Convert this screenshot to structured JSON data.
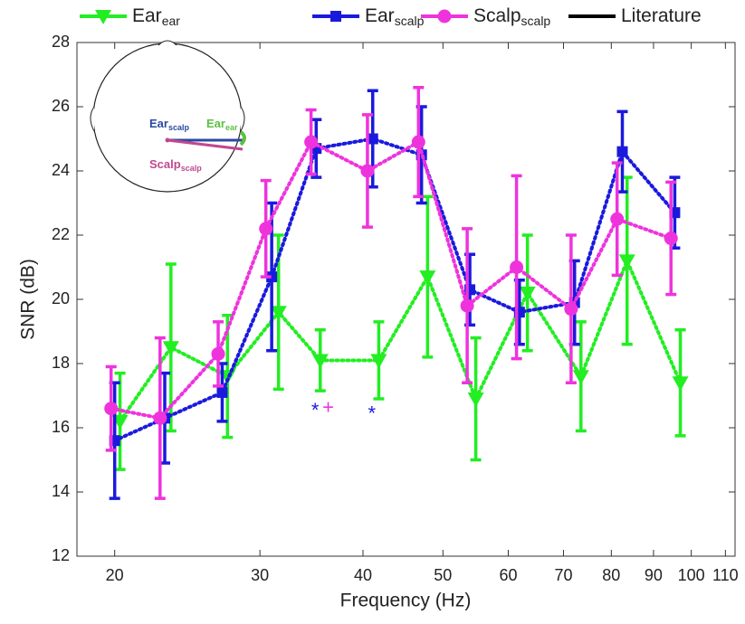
{
  "chart_data": {
    "type": "line",
    "xlabel": "Frequency (Hz)",
    "ylabel": "SNR (dB)",
    "xscale": "log",
    "xlim": [
      18,
      113
    ],
    "xticks": [
      20,
      30,
      40,
      50,
      60,
      70,
      80,
      90,
      100,
      110
    ],
    "ylim": [
      12,
      28
    ],
    "yticks": [
      12,
      14,
      16,
      18,
      20,
      22,
      24,
      26,
      28
    ],
    "series": [
      {
        "name": "Ear",
        "name_sub": "ear",
        "color": "#22ee22",
        "marker": "triangle-down",
        "x": [
          20.3,
          23.4,
          27.4,
          31.6,
          35.5,
          41.8,
          47.9,
          54.8,
          63.3,
          73.5,
          83.6,
          97.0
        ],
        "values": [
          16.2,
          18.5,
          17.6,
          19.6,
          18.1,
          18.1,
          20.7,
          16.9,
          20.2,
          17.6,
          21.2,
          17.4
        ],
        "errors": [
          1.5,
          2.6,
          1.9,
          2.4,
          0.95,
          1.2,
          2.5,
          1.9,
          1.8,
          1.7,
          2.6,
          1.65
        ]
      },
      {
        "name": "Ear",
        "name_sub": "scalp",
        "color": "#1a1add",
        "marker": "square",
        "x": [
          20.0,
          23.0,
          27.0,
          31.0,
          35.1,
          41.1,
          47.1,
          53.9,
          61.9,
          72.2,
          82.5,
          95.5
        ],
        "values": [
          15.6,
          16.3,
          17.1,
          20.7,
          24.7,
          25.0,
          24.5,
          20.3,
          19.6,
          19.9,
          24.6,
          22.7
        ],
        "errors": [
          1.8,
          1.4,
          0.9,
          2.3,
          0.9,
          1.5,
          1.5,
          1.1,
          1.0,
          1.3,
          1.25,
          1.1
        ]
      },
      {
        "name": "Scalp",
        "name_sub": "scalp",
        "color": "#ee33dd",
        "marker": "circle",
        "x": [
          19.8,
          22.7,
          26.7,
          30.5,
          34.6,
          40.5,
          46.7,
          53.5,
          61.4,
          71.5,
          81.3,
          94.5
        ],
        "values": [
          16.6,
          16.3,
          18.3,
          22.2,
          24.9,
          24.0,
          24.9,
          19.8,
          21.0,
          19.7,
          22.5,
          21.9
        ],
        "errors": [
          1.3,
          2.5,
          1.0,
          1.5,
          1.0,
          1.75,
          1.7,
          2.4,
          2.85,
          2.3,
          1.75,
          1.75
        ]
      },
      {
        "name": "Literature",
        "color": "#000000"
      }
    ],
    "annotations": [
      {
        "text": "*",
        "color": "#1a1add",
        "x": 35.0,
        "y": 16.5
      },
      {
        "text": "+",
        "color": "#ee33dd",
        "x": 36.3,
        "y": 16.6
      },
      {
        "text": "*",
        "color": "#1a1add",
        "x": 41.0,
        "y": 16.4
      }
    ],
    "inset": {
      "labels": [
        {
          "text": "Ear",
          "sub": "scalp",
          "color": "#2a4aa0"
        },
        {
          "text": "Ear",
          "sub": "ear",
          "color": "#5cc040"
        },
        {
          "text": "Scalp",
          "sub": "scalp",
          "color": "#c04890"
        }
      ]
    }
  }
}
